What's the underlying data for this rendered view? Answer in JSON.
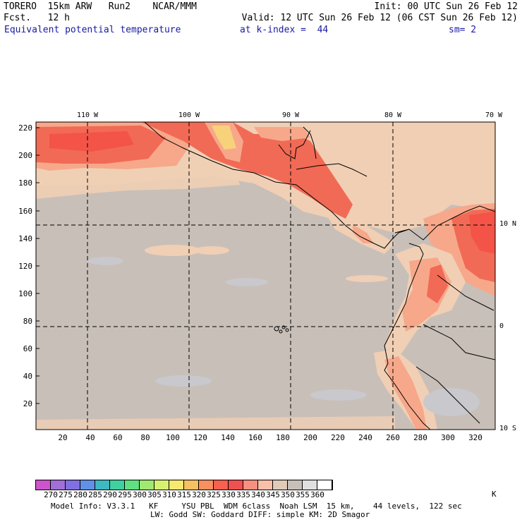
{
  "header": {
    "line1_left": "TORERO  15km ARW   Run2    NCAR/MMM",
    "line1_right": "Init: 00 UTC Sun 26 Feb 12",
    "line2_left": "Fcst.   12 h",
    "line2_right": "Valid: 12 UTC Sun 26 Feb 12 (06 CST Sun 26 Feb 12)",
    "field_name": "Equivalent potential temperature",
    "level": "at k-index =  44",
    "smoothing": "sm= 2"
  },
  "map": {
    "x_ticks": [
      "20",
      "40",
      "60",
      "80",
      "100",
      "120",
      "140",
      "160",
      "180",
      "200",
      "220",
      "240",
      "260",
      "280",
      "300",
      "320"
    ],
    "y_ticks": [
      "220",
      "200",
      "180",
      "160",
      "140",
      "120",
      "100",
      "80",
      "60",
      "40",
      "20"
    ],
    "lon_labels": [
      "110 W",
      "100 W",
      "90 W",
      "80 W",
      "70 W"
    ],
    "lat_labels": [
      "10 N",
      "0",
      "10 S"
    ],
    "colors": {
      "background": "#c8bfb8",
      "warm_low": "#f0cfb5",
      "warm_mid": "#f7a88a",
      "warm_high": "#f16a55",
      "hot": "#f35447",
      "yellow": "#f7d27a",
      "gray_patch": "#c9c8cd"
    }
  },
  "colorbar": {
    "unit": "K",
    "labels": [
      "270",
      "275",
      "280",
      "285",
      "290",
      "295",
      "300",
      "305",
      "310",
      "315",
      "320",
      "325",
      "330",
      "335",
      "340",
      "345",
      "350",
      "355",
      "360"
    ],
    "colors": [
      "#cc55cc",
      "#a070d8",
      "#8070e0",
      "#6090e8",
      "#40b8c0",
      "#40d0a0",
      "#60e080",
      "#a0e870",
      "#d8f070",
      "#f8e870",
      "#f8c060",
      "#f89060",
      "#f86050",
      "#f05050",
      "#f89080",
      "#f8c0a8",
      "#e0cbb8",
      "#c8bfb8",
      "#e0e0e0",
      "#ffffff"
    ]
  },
  "footer": {
    "line1": "Model Info: V3.3.1   KF     YSU PBL  WDM 6class  Noah LSM  15 km,    44 levels,  122 sec",
    "line2": "LW: Godd SW: Goddard DIFF: simple KM: 2D Smagor"
  }
}
